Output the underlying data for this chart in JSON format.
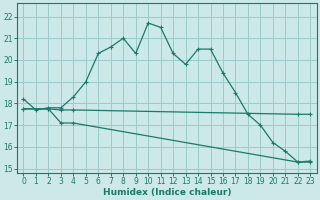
{
  "xlabel": "Humidex (Indice chaleur)",
  "bg_color": "#cce8e8",
  "grid_color": "#99cccc",
  "line_color": "#1a7a6a",
  "xlim": [
    -0.5,
    23.5
  ],
  "ylim": [
    14.8,
    22.6
  ],
  "xticks": [
    0,
    1,
    2,
    3,
    4,
    5,
    6,
    7,
    8,
    9,
    10,
    11,
    12,
    13,
    14,
    15,
    16,
    17,
    18,
    19,
    20,
    21,
    22,
    23
  ],
  "yticks": [
    15,
    16,
    17,
    18,
    19,
    20,
    21,
    22
  ],
  "line1_x": [
    0,
    1,
    2,
    3,
    4,
    5,
    6,
    7,
    8,
    9,
    10,
    11,
    12,
    13,
    14,
    15,
    16,
    17,
    18,
    19,
    20,
    21,
    22,
    23
  ],
  "line1_y": [
    18.2,
    17.7,
    17.8,
    17.8,
    18.3,
    19.0,
    20.3,
    20.6,
    21.0,
    20.3,
    21.7,
    21.5,
    20.3,
    19.8,
    20.5,
    20.5,
    19.4,
    18.5,
    17.5,
    17.0,
    16.2,
    15.8,
    15.3,
    15.35
  ],
  "line2_x": [
    0,
    2,
    3,
    4,
    22,
    23
  ],
  "line2_y": [
    17.75,
    17.75,
    17.7,
    17.7,
    17.5,
    17.5
  ],
  "line3_x": [
    0,
    2,
    3,
    4,
    22,
    23
  ],
  "line3_y": [
    17.75,
    17.75,
    17.1,
    17.1,
    15.3,
    15.3
  ]
}
